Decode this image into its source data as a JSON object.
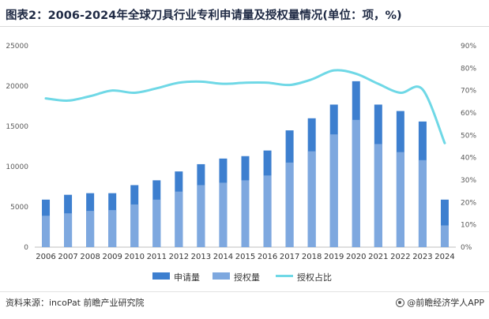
{
  "title": "图表2：2006-2024年全球刀具行业专利申请量及授权量情况(单位：项，%)",
  "source": "资料来源：incoPat 前瞻产业研究院",
  "brand": "@前瞻经济学人APP",
  "colors": {
    "applications": "#3d7fcf",
    "grants": "#7ea8df",
    "ratio_line": "#6fd8e6"
  },
  "chart_data": {
    "type": "bar",
    "categories": [
      "2006",
      "2007",
      "2008",
      "2009",
      "2010",
      "2011",
      "2012",
      "2013",
      "2014",
      "2015",
      "2016",
      "2017",
      "2018",
      "2019",
      "2020",
      "2021",
      "2022",
      "2023",
      "2024"
    ],
    "series": [
      {
        "name": "申请量",
        "type": "bar",
        "axis": "left",
        "values": [
          5900,
          6500,
          6700,
          6700,
          7700,
          8300,
          9400,
          10300,
          11000,
          11300,
          12000,
          14500,
          16000,
          17700,
          20600,
          17700,
          16900,
          15600,
          5900
        ]
      },
      {
        "name": "授权量",
        "type": "bar",
        "axis": "left",
        "values": [
          3900,
          4200,
          4500,
          4600,
          5300,
          5900,
          6900,
          7700,
          8000,
          8300,
          8900,
          10500,
          11900,
          14000,
          15800,
          12800,
          11800,
          10800,
          2700
        ]
      },
      {
        "name": "授权占比",
        "type": "line",
        "axis": "right",
        "unit": "%",
        "values": [
          66.5,
          65.5,
          67.5,
          70,
          69,
          71,
          73.5,
          74,
          73,
          73.5,
          73.5,
          72.5,
          75,
          79,
          77.5,
          73,
          69,
          70.5,
          46.5
        ]
      }
    ],
    "y_left": {
      "ylim": [
        0,
        25000
      ],
      "ticks": [
        "0",
        "5000",
        "10000",
        "15000",
        "20000",
        "25000"
      ]
    },
    "y_right": {
      "ylim": [
        0,
        90
      ],
      "ticks": [
        "0%",
        "10%",
        "20%",
        "30%",
        "40%",
        "50%",
        "60%",
        "70%",
        "80%",
        "90%"
      ]
    },
    "bars_stacked": false,
    "grid": false,
    "legend_position": "bottom-center"
  }
}
